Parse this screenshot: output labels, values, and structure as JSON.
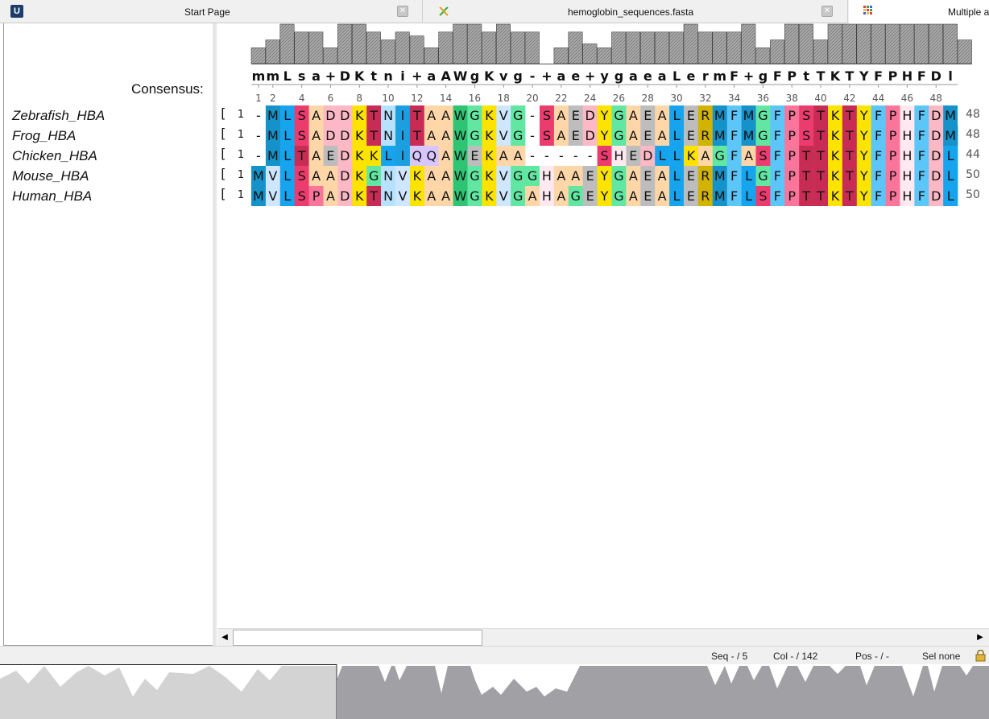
{
  "tabs": [
    {
      "label": "Start Page",
      "close_icon": "close-icon",
      "icon": "ugene-logo-icon"
    },
    {
      "label": "hemoglobin_sequences.fasta",
      "close_icon": "close-icon",
      "icon": "dna-helix-icon"
    },
    {
      "label": "Multiple a",
      "icon": "alignment-grid-icon"
    }
  ],
  "consensus": {
    "label": "Consensus:",
    "string": "mmLsa+DKtni+aAWgKvg-+ae+ygaeaLermF+gFPtTKTYFPHFDl",
    "bar_levels": [
      4,
      6,
      10,
      8,
      8,
      4,
      10,
      10,
      8,
      6,
      8,
      7,
      4,
      8,
      10,
      10,
      8,
      10,
      8,
      8,
      0,
      4,
      8,
      5,
      4,
      8,
      8,
      8,
      8,
      8,
      10,
      8,
      8,
      8,
      10,
      4,
      6,
      10,
      10,
      6,
      10,
      10,
      10,
      10,
      10,
      10,
      10,
      10,
      10,
      6
    ]
  },
  "ruler": {
    "labels": [
      "1",
      "2",
      "4",
      "6",
      "8",
      "10",
      "12",
      "14",
      "16",
      "18",
      "20",
      "22",
      "24",
      "26",
      "28",
      "30",
      "32",
      "34",
      "36",
      "38",
      "40",
      "42",
      "44",
      "46",
      "48"
    ]
  },
  "sequences": [
    {
      "name": "Zebrafish_HBA",
      "bracket": "[",
      "start": "1",
      "end": "48",
      "seq": "-MLSADDKTNITAAWGKVG-SAEDYGAEALERMFMGFPSTKTYFPHFDM"
    },
    {
      "name": "Frog_HBA",
      "bracket": "[",
      "start": "1",
      "end": "48",
      "seq": "-MLSADDKTNITAAWGKVG-SAEDYGAEALERMFMGFPSTKTYFPHFDM"
    },
    {
      "name": "Chicken_HBA",
      "bracket": "[",
      "start": "1",
      "end": "44",
      "seq": "-MLTAEDKKLIQQAWEKAA-----SHEDLLKAGFASFPTTKTYFPHFDL"
    },
    {
      "name": "Mouse_HBA",
      "bracket": "[",
      "start": "1",
      "end": "50",
      "seq": "MVLSAADKGNVKAAWGKVGGHAAEYGAEALERMFLGFPTTKTYFPHFDL"
    },
    {
      "name": "Human_HBA",
      "bracket": "[",
      "start": "1",
      "end": "50",
      "seq": "MVLSPADKTNVKAAWGKVGAHAGEYGAEALERMFLSFPTTKTYFPHFDL"
    }
  ],
  "colors": {
    "A": "#fed6a8",
    "D": "#fcb8c4",
    "E": "#bdbdbd",
    "G": "#61e7a1",
    "K": "#fde300",
    "L": "#17a4ef",
    "M": "#1492c9",
    "N": "#b7e2ff",
    "P": "#f9759a",
    "Q": "#d8c6ff",
    "R": "#d1b300",
    "S": "#ec3c6d",
    "T": "#c82c55",
    "V": "#cfe6ff",
    "W": "#2ec473",
    "Y": "#fde300",
    "H": "#ffe9f1",
    "F": "#5cc6f9",
    "I": "#1b9fe0",
    "C": "#f8ff6d",
    "bar_fill": "#a9a9a9"
  },
  "scrollbar": {
    "left_arrow": "◀",
    "right_arrow": "▶"
  },
  "status": {
    "seq": "Seq - / 5",
    "col": "Col - / 142",
    "pos": "Pos - / -",
    "sel": "Sel none",
    "lock_icon": "lock-icon"
  },
  "overview": {
    "label": "alignment-overview"
  }
}
